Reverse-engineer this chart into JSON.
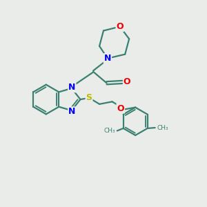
{
  "background_color": "#eaecea",
  "bond_color": "#3a8070",
  "N_color": "#0000ee",
  "O_color": "#ee0000",
  "S_color": "#bbbb00",
  "line_width": 1.6,
  "figsize": [
    3.0,
    3.0
  ],
  "dpi": 100,
  "xlim": [
    0,
    10
  ],
  "ylim": [
    0,
    10
  ]
}
